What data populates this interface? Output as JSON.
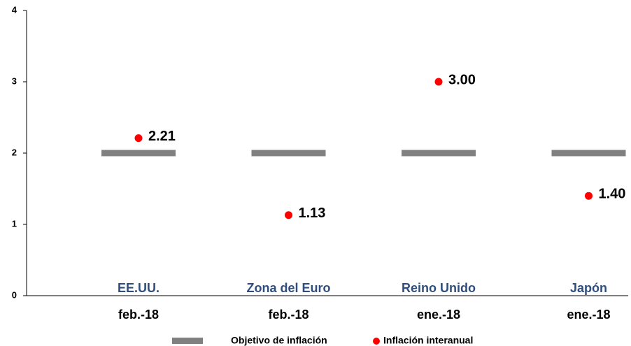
{
  "chart_data": {
    "type": "scatter",
    "categories": [
      "EE.UU.",
      "Zona del Euro",
      "Reino Unido",
      "Japón"
    ],
    "dates": [
      "feb.-18",
      "feb.-18",
      "ene.-18",
      "ene.-18"
    ],
    "series": [
      {
        "name": "Objetivo de inflación",
        "color": "#808080",
        "marker": "dash",
        "values": [
          2,
          2,
          2,
          2
        ]
      },
      {
        "name": "Inflación interanual",
        "color": "#ff0000",
        "marker": "dot",
        "values": [
          2.21,
          1.13,
          3,
          1.4
        ],
        "value_labels": [
          "2.21",
          "1.13",
          "3.00",
          "1.40"
        ]
      }
    ],
    "ylim": [
      0,
      4
    ],
    "yticks": [
      0,
      1,
      2,
      3,
      4
    ]
  }
}
